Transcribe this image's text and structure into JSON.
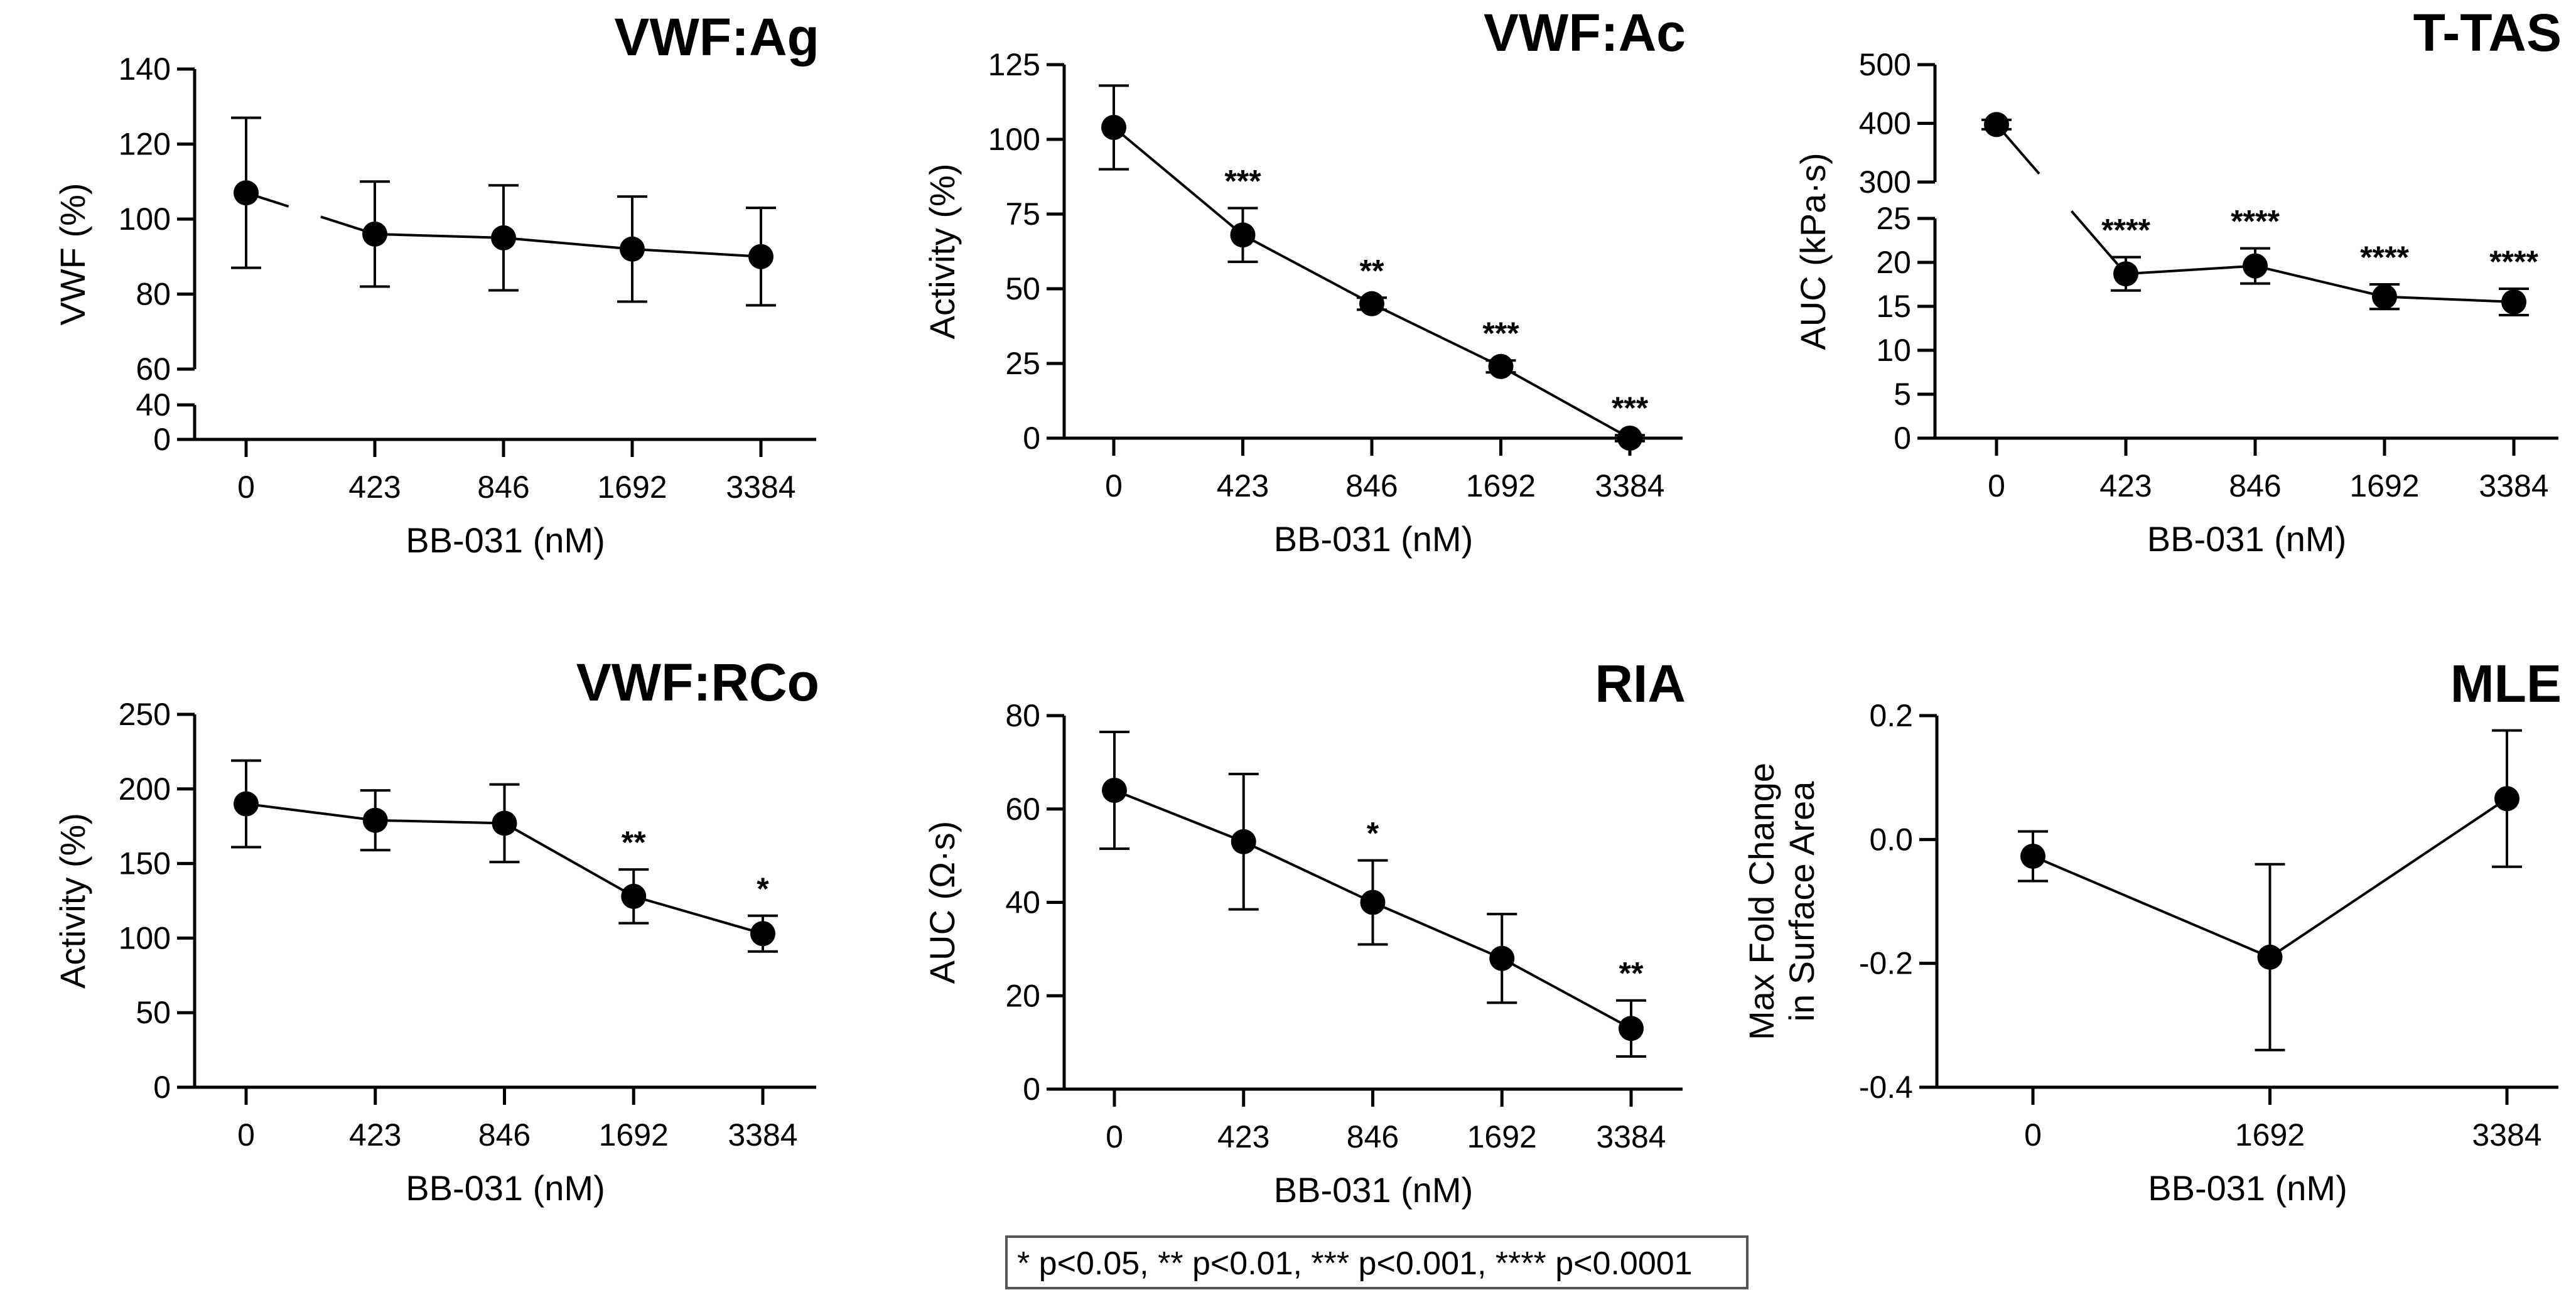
{
  "footnote": "* p<0.05, ** p<0.01, *** p<0.001, **** p<0.0001",
  "chart_data": [
    {
      "type": "line",
      "title": "VWF:Ag",
      "xlabel": "BB-031 (nM)",
      "ylabel": "VWF (%)",
      "categories": [
        "0",
        "423",
        "846",
        "1692",
        "3384"
      ],
      "values": [
        107,
        96,
        95,
        92,
        90
      ],
      "error": [
        20,
        14,
        14,
        14,
        13
      ],
      "significance": [
        "",
        "",
        "",
        "",
        ""
      ],
      "ylim": [
        0,
        140
      ],
      "broken_axis": {
        "lower_ylim": [
          0,
          40
        ],
        "lower_ticks": [
          0,
          40
        ],
        "upper_ylim": [
          60,
          140
        ],
        "upper_ticks": [
          60,
          80,
          100,
          120,
          140
        ]
      }
    },
    {
      "type": "line",
      "title": "VWF:Ac",
      "xlabel": "BB-031 (nM)",
      "ylabel": "Activity (%)",
      "categories": [
        "0",
        "423",
        "846",
        "1692",
        "3384"
      ],
      "values": [
        104,
        68,
        45,
        24,
        0
      ],
      "error": [
        14,
        9,
        2,
        2,
        1
      ],
      "significance": [
        "",
        "***",
        "**",
        "***",
        "***"
      ],
      "ylim": [
        0,
        125
      ],
      "yticks": [
        0,
        25,
        50,
        75,
        100,
        125
      ]
    },
    {
      "type": "line",
      "title": "T-TAS",
      "xlabel": "BB-031 (nM)",
      "ylabel": "AUC (kPa·s)",
      "categories": [
        "0",
        "423",
        "846",
        "1692",
        "3384"
      ],
      "values": [
        398,
        18.7,
        19.6,
        16.1,
        15.5
      ],
      "error": [
        8,
        1.9,
        2.0,
        1.4,
        1.5
      ],
      "significance": [
        "",
        "****",
        "****",
        "****",
        "****"
      ],
      "ylim": [
        0,
        500
      ],
      "broken_axis": {
        "lower_ylim": [
          0,
          25
        ],
        "lower_ticks": [
          0,
          5,
          10,
          15,
          20,
          25
        ],
        "upper_ylim": [
          300,
          500
        ],
        "upper_ticks": [
          300,
          400,
          500
        ]
      }
    },
    {
      "type": "line",
      "title": "VWF:RCo",
      "xlabel": "BB-031 (nM)",
      "ylabel": "Activity (%)",
      "categories": [
        "0",
        "423",
        "846",
        "1692",
        "3384"
      ],
      "values": [
        190,
        179,
        177,
        128,
        103
      ],
      "error": [
        29,
        20,
        26,
        18,
        12
      ],
      "significance": [
        "",
        "",
        "",
        "**",
        "*"
      ],
      "ylim": [
        0,
        250
      ],
      "yticks": [
        0,
        50,
        100,
        150,
        200,
        250
      ]
    },
    {
      "type": "line",
      "title": "RIA",
      "xlabel": "BB-031 (nM)",
      "ylabel": "AUC (Ω·s)",
      "categories": [
        "0",
        "423",
        "846",
        "1692",
        "3384"
      ],
      "values": [
        64,
        53,
        40,
        28,
        13
      ],
      "error": [
        12.5,
        14.5,
        9,
        9.5,
        6
      ],
      "significance": [
        "",
        "",
        "*",
        "",
        "**"
      ],
      "ylim": [
        0,
        80
      ],
      "yticks": [
        0,
        20,
        40,
        60,
        80
      ]
    },
    {
      "type": "line",
      "title": "MLE",
      "xlabel": "BB-031 (nM)",
      "ylabel": [
        "Max Fold Change",
        "in Surface Area"
      ],
      "categories": [
        "0",
        "1692",
        "3384"
      ],
      "values": [
        -0.027,
        -0.19,
        0.066
      ],
      "error": [
        0.04,
        0.15,
        0.11
      ],
      "significance": [
        "",
        "",
        ""
      ],
      "ylim": [
        -0.4,
        0.2
      ],
      "yticks": [
        -0.4,
        -0.2,
        0.0,
        0.2
      ],
      "ytick_labels": [
        "-0.4",
        "-0.2",
        "0.0",
        "0.2"
      ]
    }
  ]
}
